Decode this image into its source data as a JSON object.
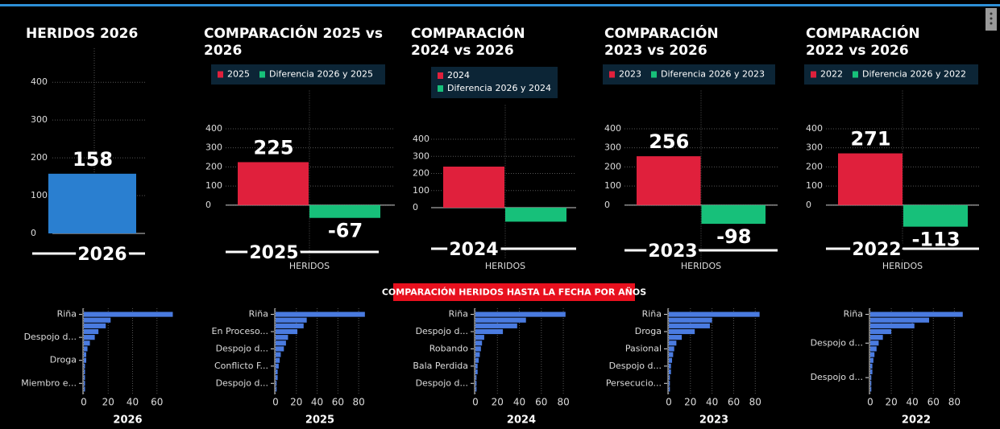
{
  "banner": "COMPARACIÓN HERIDOS HASTA LA FECHA POR AÑOS",
  "chart_data": [
    {
      "type": "bar",
      "title": [
        "HERIDOS 2026"
      ],
      "categories": [
        "2026"
      ],
      "values": [
        158
      ],
      "color": "#2a7fd0",
      "ylim": [
        0,
        490
      ],
      "yticks": [
        0,
        100,
        200,
        300,
        400
      ],
      "grid": true,
      "data_labels": true
    },
    {
      "type": "bar",
      "title": [
        "COMPARACIÓN 2025 vs",
        "2026"
      ],
      "categories": [
        "2025"
      ],
      "xlabel": "HERIDOS",
      "series": [
        {
          "name": "2025",
          "color": "#e0203c",
          "values": [
            225
          ]
        },
        {
          "name": "Diferencia 2026 y 2025",
          "color": "#17c07a",
          "values": [
            -67
          ]
        }
      ],
      "ylim": [
        -300,
        600
      ],
      "yticks": [
        0,
        100,
        200,
        300,
        400
      ],
      "grid": true,
      "data_labels": true
    },
    {
      "type": "bar",
      "title": [
        "COMPARACIÓN",
        "2024 vs 2026"
      ],
      "categories": [
        "2024"
      ],
      "xlabel": "HERIDOS",
      "series": [
        {
          "name": "2024",
          "color": "#e0203c",
          "values": [
            240
          ]
        },
        {
          "name": "Diferencia 2026 y 2024",
          "color": "#17c07a",
          "values": [
            -82
          ]
        }
      ],
      "ylim": [
        -300,
        600
      ],
      "yticks": [
        0,
        100,
        200,
        300,
        400
      ],
      "grid": true,
      "data_labels": false
    },
    {
      "type": "bar",
      "title": [
        "COMPARACIÓN",
        "2023 vs 2026"
      ],
      "categories": [
        "2023"
      ],
      "xlabel": "HERIDOS",
      "series": [
        {
          "name": "2023",
          "color": "#e0203c",
          "values": [
            256
          ]
        },
        {
          "name": "Diferencia 2026 y 2023",
          "color": "#17c07a",
          "values": [
            -98
          ]
        }
      ],
      "ylim": [
        -300,
        600
      ],
      "yticks": [
        0,
        100,
        200,
        300,
        400
      ],
      "grid": true,
      "data_labels": true
    },
    {
      "type": "bar",
      "title": [
        "COMPARACIÓN",
        "2022 vs 2026"
      ],
      "categories": [
        "2022"
      ],
      "xlabel": "HERIDOS",
      "series": [
        {
          "name": "2022",
          "color": "#e0203c",
          "values": [
            271
          ]
        },
        {
          "name": "Diferencia 2026 y 2022",
          "color": "#17c07a",
          "values": [
            -113
          ]
        }
      ],
      "ylim": [
        -300,
        600
      ],
      "yticks": [
        0,
        100,
        200,
        300,
        400
      ],
      "grid": true,
      "data_labels": true
    },
    {
      "type": "barh",
      "categories": [
        "Riña",
        null,
        null,
        null,
        "Despojo d...",
        null,
        null,
        null,
        "Droga",
        null,
        null,
        null,
        "Miembro e...",
        null
      ],
      "values": [
        73,
        22,
        18,
        12,
        9,
        5,
        3,
        2,
        2,
        1,
        1,
        1,
        1,
        1
      ],
      "color": "#4a7be0",
      "xlim": [
        0,
        76
      ],
      "xticks": [
        0,
        20,
        40,
        60
      ],
      "xlabel": "2026",
      "grid": true
    },
    {
      "type": "barh",
      "categories": [
        "Riña",
        null,
        null,
        "En Proceso...",
        null,
        null,
        "Despojo d...",
        null,
        null,
        "Conflicto F...",
        null,
        null,
        "Despojo d...",
        null
      ],
      "values": [
        86,
        30,
        27,
        21,
        12,
        10,
        8,
        5,
        4,
        3,
        2,
        2,
        1,
        1
      ],
      "color": "#4a7be0",
      "xlim": [
        0,
        90
      ],
      "xticks": [
        0,
        20,
        40,
        60,
        80
      ],
      "xlabel": "2025",
      "grid": true
    },
    {
      "type": "barh",
      "categories": [
        "Riña",
        null,
        null,
        "Despojo d...",
        null,
        null,
        "Robando",
        null,
        null,
        "Bala Perdida",
        null,
        null,
        "Despojo d...",
        null
      ],
      "values": [
        82,
        46,
        38,
        25,
        8,
        6,
        5,
        4,
        3,
        2,
        2,
        1,
        1,
        1
      ],
      "color": "#4a7be0",
      "xlim": [
        0,
        88
      ],
      "xticks": [
        0,
        20,
        40,
        60,
        80
      ],
      "xlabel": "2024",
      "grid": true
    },
    {
      "type": "barh",
      "categories": [
        "Riña",
        null,
        null,
        "Droga",
        null,
        null,
        "Pasional",
        null,
        null,
        "Despojo d...",
        null,
        null,
        "Persecucio...",
        null
      ],
      "values": [
        84,
        40,
        38,
        24,
        12,
        7,
        5,
        4,
        3,
        2,
        2,
        1,
        1,
        1
      ],
      "color": "#4a7be0",
      "xlim": [
        0,
        88
      ],
      "xticks": [
        0,
        20,
        40,
        60,
        80
      ],
      "xlabel": "2023",
      "grid": true
    },
    {
      "type": "barh",
      "categories": [
        "Riña",
        null,
        null,
        null,
        null,
        "Despojo d...",
        null,
        null,
        null,
        null,
        null,
        "Despojo d...",
        null,
        null
      ],
      "values": [
        88,
        56,
        42,
        20,
        12,
        8,
        6,
        4,
        3,
        2,
        2,
        1,
        1,
        1
      ],
      "color": "#4a7be0",
      "xlim": [
        0,
        92
      ],
      "xticks": [
        0,
        20,
        40,
        60,
        80
      ],
      "xlabel": "2022",
      "grid": true
    }
  ]
}
